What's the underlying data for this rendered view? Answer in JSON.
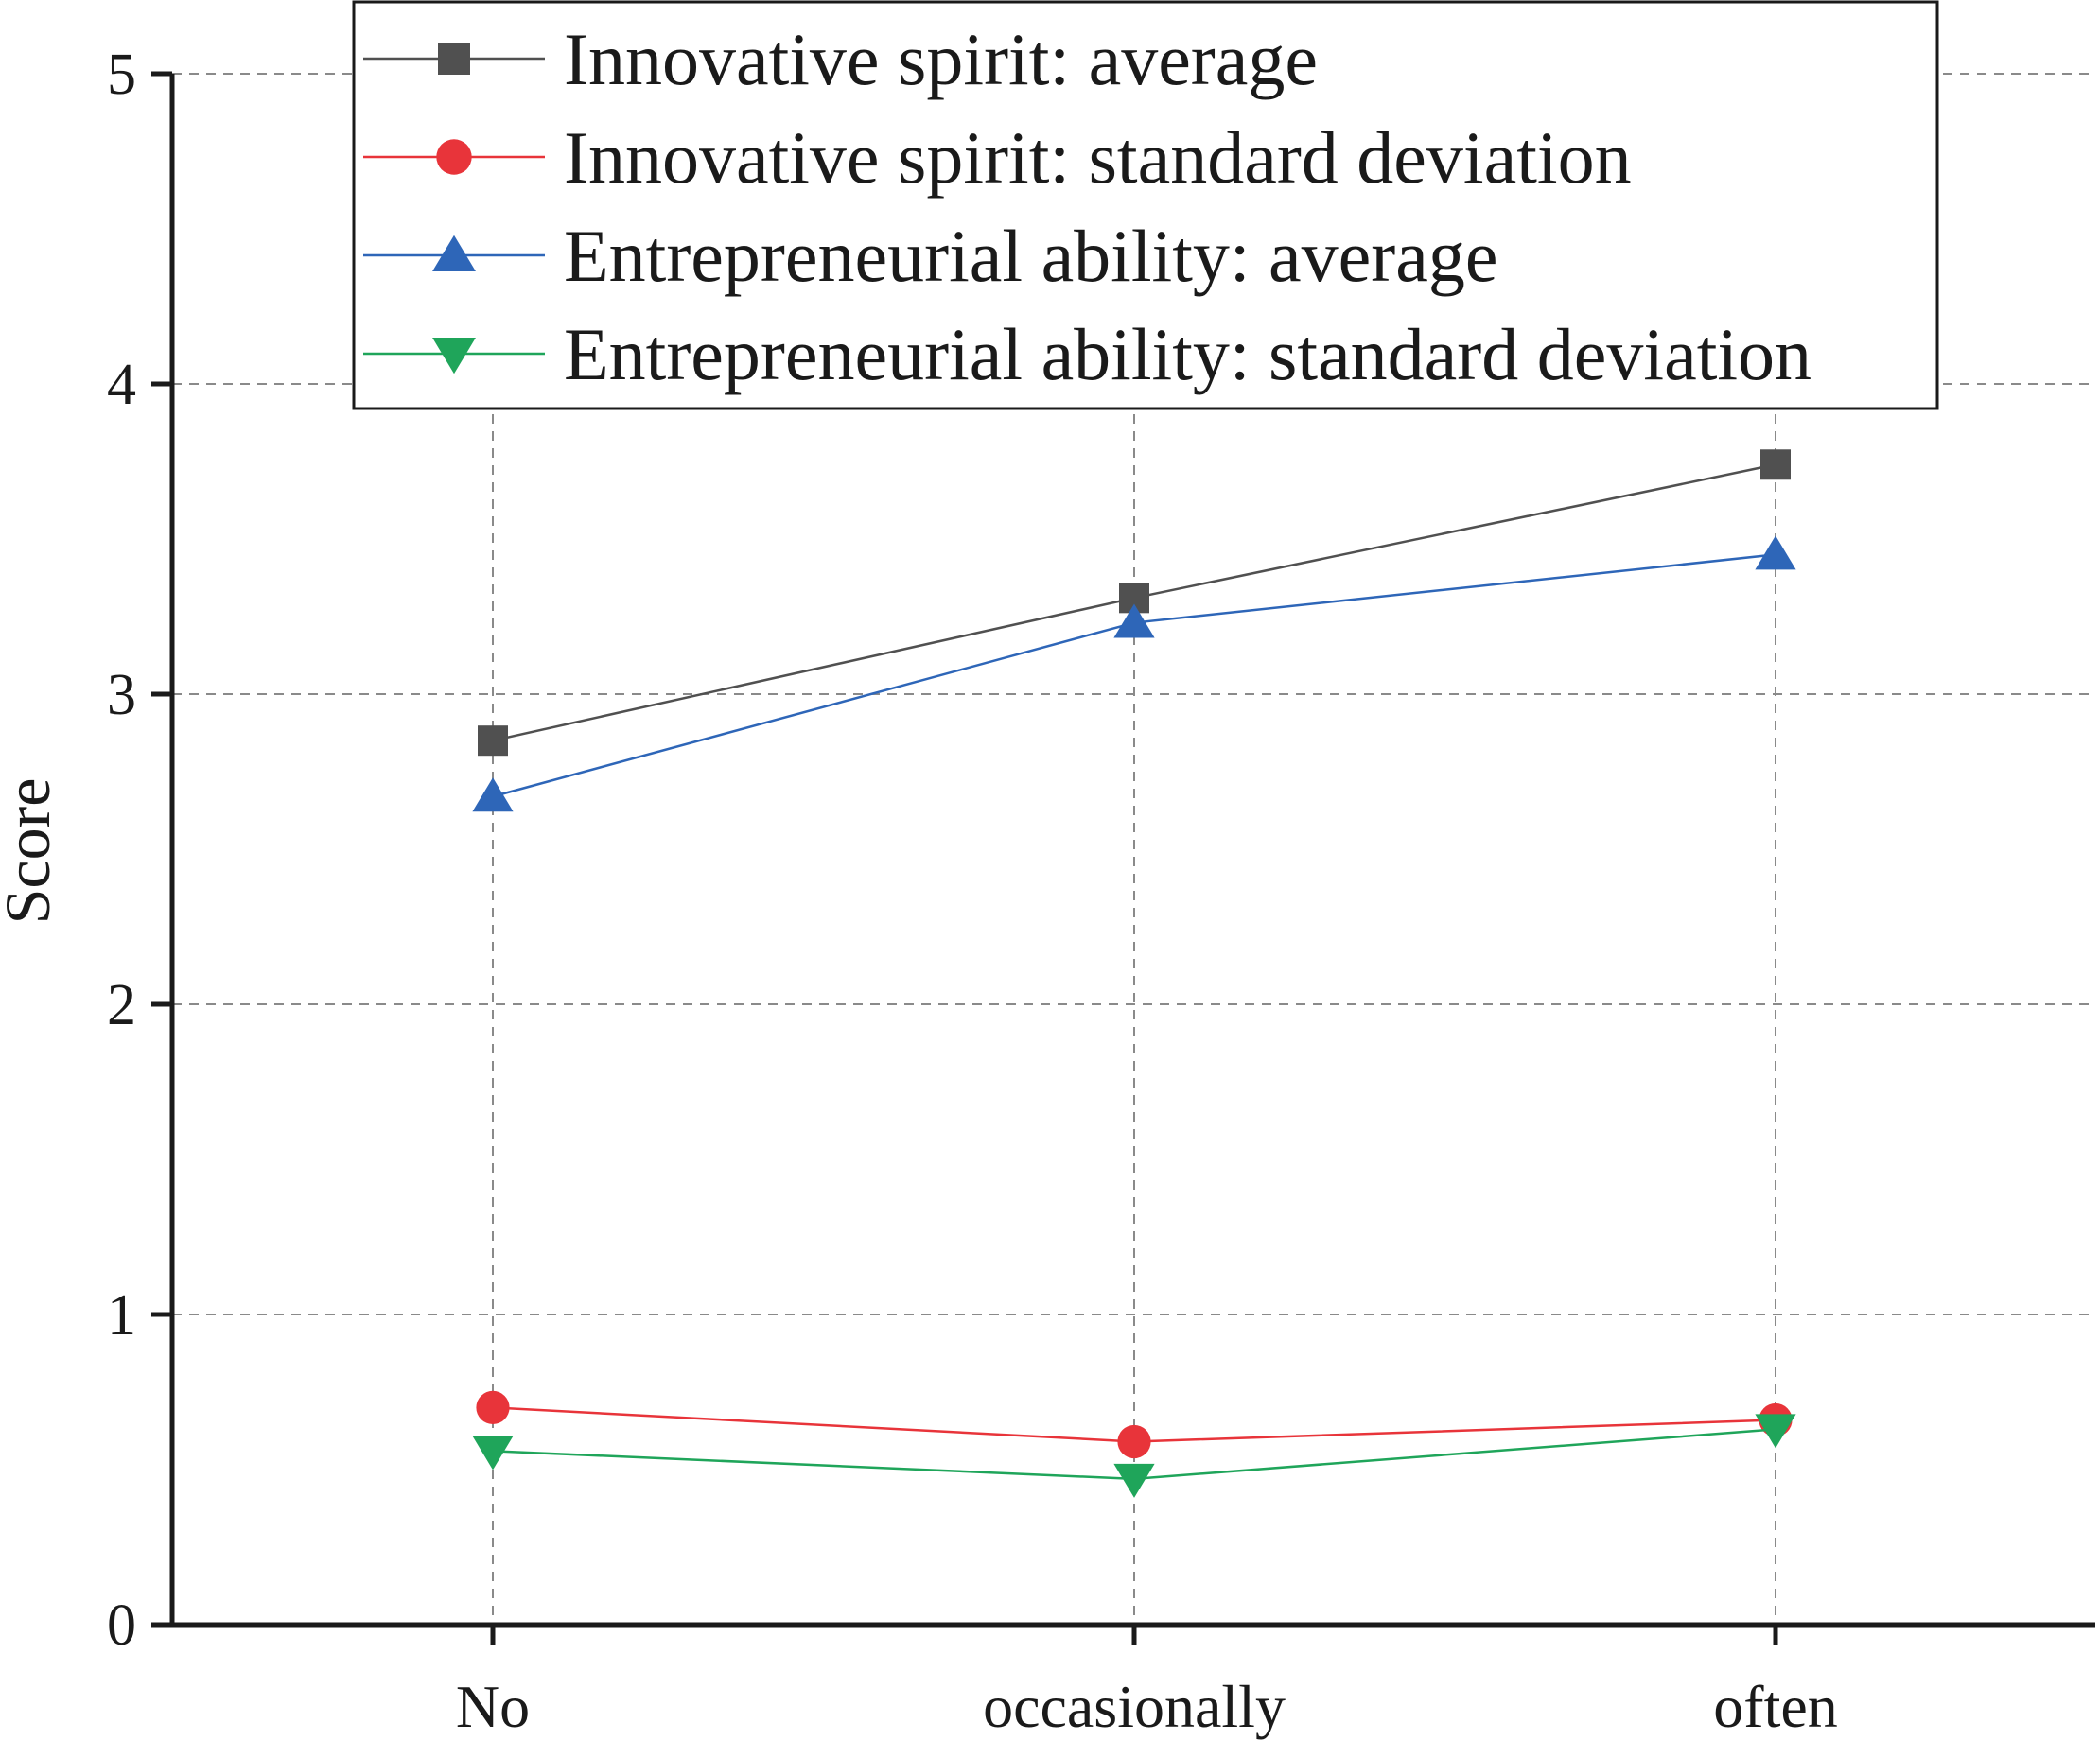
{
  "chart_data": {
    "type": "line",
    "title": "",
    "xlabel": "",
    "ylabel": "Score",
    "categories": [
      "No",
      "occasionally",
      "often"
    ],
    "ylim": [
      0,
      5
    ],
    "yticks": [
      "0",
      "1",
      "2",
      "3",
      "4",
      "5"
    ],
    "grid": true,
    "legend_position": "top",
    "series": [
      {
        "name": "Innovative spirit: average",
        "marker": "square",
        "color": "#505050",
        "values": [
          2.85,
          3.31,
          3.74
        ]
      },
      {
        "name": "Innovative spirit: standard deviation",
        "marker": "circle",
        "color": "#e8343a",
        "values": [
          0.7,
          0.59,
          0.66
        ]
      },
      {
        "name": "Entrepreneurial ability: average",
        "marker": "triangle-up",
        "color": "#2e66b8",
        "values": [
          2.67,
          3.23,
          3.45
        ]
      },
      {
        "name": "Entrepreneurial ability: standard deviation",
        "marker": "triangle-down",
        "color": "#1fa55a",
        "values": [
          0.56,
          0.47,
          0.63
        ]
      }
    ]
  }
}
